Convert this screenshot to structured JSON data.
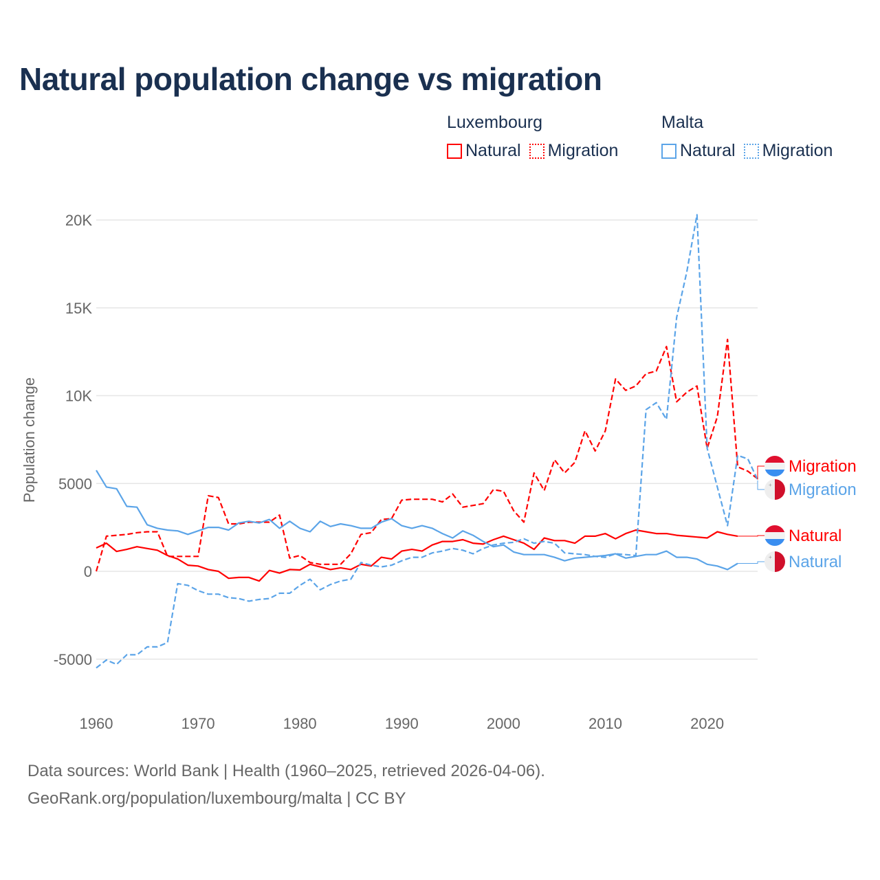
{
  "title": "Natural population change vs migration",
  "legend": {
    "groups": [
      {
        "name": "Luxembourg",
        "items": [
          {
            "label": "Natural",
            "style": "solid"
          },
          {
            "label": "Migration",
            "style": "dotted"
          }
        ],
        "color": "#ff0000"
      },
      {
        "name": "Malta",
        "items": [
          {
            "label": "Natural",
            "style": "solid"
          },
          {
            "label": "Migration",
            "style": "dotted"
          }
        ],
        "color": "#5ba4e8"
      }
    ]
  },
  "footer": {
    "line1": "Data sources: World Bank | Health (1960–2025, retrieved 2026-04-06).",
    "line2": "GeoRank.org/population/luxembourg/malta | CC BY"
  },
  "chart_data": {
    "type": "line",
    "title": "Natural population change vs migration",
    "xlabel": "",
    "ylabel": "Population change",
    "xlim": [
      1960,
      2025
    ],
    "ylim": [
      -5500,
      20500
    ],
    "x_ticks": [
      "1960",
      "1970",
      "1980",
      "1990",
      "2000",
      "2010",
      "2020"
    ],
    "y_ticks": [
      {
        "value": 20000,
        "label": "20K"
      },
      {
        "value": 15000,
        "label": "15K"
      },
      {
        "value": 10000,
        "label": "10K"
      },
      {
        "value": 5000,
        "label": "5000"
      },
      {
        "value": 0,
        "label": "0"
      },
      {
        "value": -5000,
        "label": "-5000"
      }
    ],
    "grid": true,
    "x_start": 1960,
    "series": [
      {
        "name": "Luxembourg Natural",
        "end_label": "Natural",
        "color": "#ff0000",
        "dash": false,
        "flag": "luxembourg",
        "values": [
          1330,
          1600,
          1130,
          1250,
          1400,
          1300,
          1200,
          900,
          700,
          350,
          300,
          100,
          0,
          -400,
          -350,
          -350,
          -550,
          50,
          -100,
          100,
          80,
          400,
          250,
          100,
          200,
          100,
          400,
          300,
          800,
          700,
          1150,
          1250,
          1150,
          1500,
          1700,
          1700,
          1800,
          1600,
          1550,
          1800,
          2000,
          1800,
          1600,
          1250,
          1900,
          1750,
          1750,
          1600,
          2000,
          2000,
          2150,
          1850,
          2150,
          2350,
          2250,
          2150,
          2150,
          2050,
          2000,
          1950,
          1900,
          2250,
          2100,
          2000,
          null,
          null
        ]
      },
      {
        "name": "Luxembourg Migration",
        "end_label": "Migration",
        "color": "#ff0000",
        "dash": true,
        "flag": "luxembourg",
        "values": [
          0,
          2000,
          2050,
          2100,
          2200,
          2250,
          2250,
          850,
          850,
          850,
          850,
          4300,
          4200,
          2700,
          2700,
          2800,
          2800,
          2800,
          3200,
          750,
          900,
          500,
          400,
          400,
          400,
          1000,
          2100,
          2200,
          2950,
          3000,
          4050,
          4100,
          4100,
          4100,
          3950,
          4400,
          3650,
          3750,
          3850,
          4650,
          4550,
          3450,
          2800,
          5600,
          4600,
          6350,
          5600,
          6200,
          8000,
          6850,
          8000,
          10950,
          10300,
          10550,
          11250,
          11400,
          12800,
          9650,
          10200,
          10550,
          7000,
          8800,
          13200,
          5950,
          5700,
          5250
        ]
      },
      {
        "name": "Malta Natural",
        "end_label": "Natural",
        "color": "#5ba4e8",
        "dash": false,
        "flag": "malta",
        "values": [
          5750,
          4800,
          4700,
          3700,
          3650,
          2650,
          2450,
          2350,
          2300,
          2100,
          2300,
          2500,
          2500,
          2350,
          2750,
          2850,
          2750,
          2950,
          2450,
          2850,
          2450,
          2250,
          2850,
          2550,
          2700,
          2600,
          2450,
          2450,
          2800,
          3000,
          2600,
          2450,
          2600,
          2450,
          2150,
          1900,
          2300,
          2050,
          1700,
          1400,
          1500,
          1100,
          950,
          950,
          950,
          800,
          600,
          750,
          800,
          850,
          900,
          1000,
          750,
          850,
          950,
          950,
          1150,
          800,
          800,
          700,
          400,
          300,
          100,
          450,
          null,
          null
        ]
      },
      {
        "name": "Malta Migration",
        "end_label": "Migration",
        "color": "#5ba4e8",
        "dash": true,
        "flag": "malta",
        "values": [
          -5500,
          -5050,
          -5300,
          -4750,
          -4750,
          -4300,
          -4300,
          -4050,
          -700,
          -800,
          -1100,
          -1300,
          -1300,
          -1500,
          -1550,
          -1700,
          -1600,
          -1550,
          -1250,
          -1250,
          -800,
          -450,
          -1050,
          -750,
          -550,
          -450,
          500,
          350,
          250,
          350,
          600,
          800,
          800,
          1050,
          1150,
          1300,
          1200,
          1000,
          1300,
          1500,
          1600,
          1650,
          1850,
          1600,
          1700,
          1600,
          1050,
          1000,
          950,
          850,
          800,
          1000,
          950,
          900,
          9200,
          9600,
          8650,
          14450,
          17050,
          20300,
          7000,
          4800,
          2600,
          6600,
          6400,
          5150
        ]
      }
    ]
  }
}
